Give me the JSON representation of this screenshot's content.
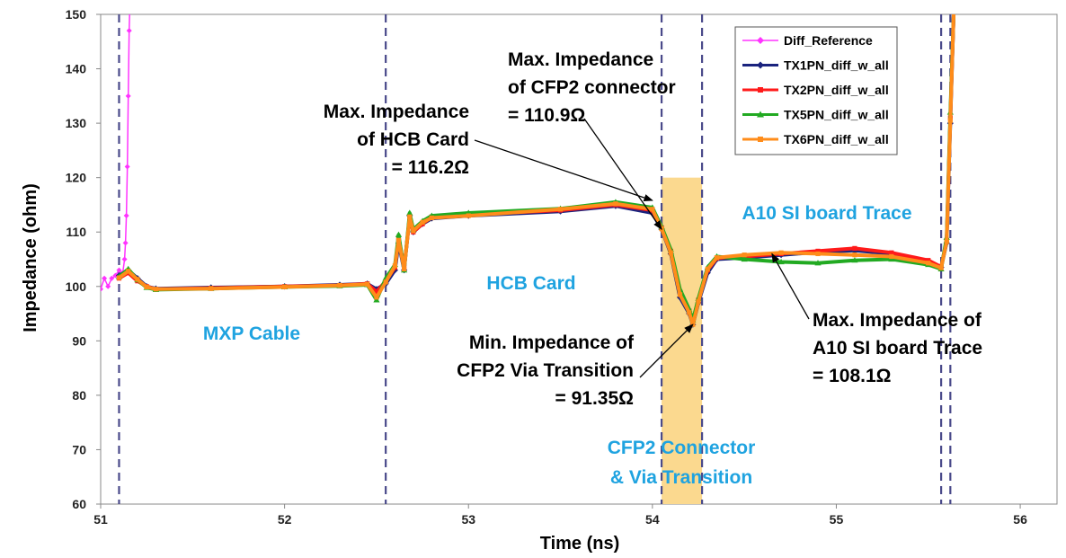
{
  "chart_data": {
    "type": "line",
    "xlabel": "Time (ns)",
    "ylabel": "Impedance (ohm)",
    "xlim": [
      51,
      56.2
    ],
    "ylim": [
      60,
      150
    ],
    "x_ticks": [
      51,
      52,
      53,
      54,
      55,
      56
    ],
    "y_ticks": [
      60,
      70,
      80,
      90,
      100,
      110,
      120,
      130,
      140,
      150
    ],
    "grid": false,
    "legend_position": "top-right",
    "vertical_markers": [
      51.1,
      52.55,
      54.05,
      54.27,
      55.57,
      55.62
    ],
    "highlight_band": {
      "x": [
        54.05,
        54.27
      ],
      "y": [
        60,
        120
      ],
      "color": "#fbd98f"
    },
    "series": [
      {
        "name": "Diff_Reference",
        "color": "#ff33ff",
        "marker": "diamond",
        "x": [
          51.0,
          51.02,
          51.04,
          51.06,
          51.08,
          51.1,
          51.12,
          51.13,
          51.135,
          51.14,
          51.145,
          51.15,
          51.155,
          51.16
        ],
        "y": [
          99.5,
          101.5,
          100.0,
          101.5,
          102.0,
          103.0,
          102.5,
          105.0,
          108.0,
          113.0,
          122.0,
          135.0,
          147.0,
          153.0
        ]
      },
      {
        "name": "TX1PN_diff_w_all",
        "color": "#1a237e",
        "marker": "diamond",
        "x": [
          51.1,
          51.15,
          51.2,
          51.25,
          51.3,
          51.6,
          52.0,
          52.3,
          52.45,
          52.5,
          52.55,
          52.6,
          52.62,
          52.65,
          52.68,
          52.7,
          52.75,
          52.8,
          53.0,
          53.5,
          53.8,
          54.0,
          54.05,
          54.1,
          54.15,
          54.2,
          54.22,
          54.25,
          54.3,
          54.35,
          54.5,
          54.7,
          54.9,
          55.1,
          55.3,
          55.5,
          55.57,
          55.6,
          55.62,
          55.64
        ],
        "y": [
          102.0,
          103.0,
          101.5,
          100.0,
          99.6,
          99.8,
          100.0,
          100.3,
          100.5,
          99.5,
          100.5,
          103.0,
          108.0,
          103.0,
          113.0,
          110.0,
          111.5,
          112.5,
          113.0,
          113.8,
          114.8,
          113.5,
          110.5,
          106.0,
          98.0,
          95.0,
          93.0,
          97.0,
          102.5,
          105.0,
          105.3,
          105.8,
          106.3,
          106.6,
          106.0,
          104.5,
          103.5,
          108.0,
          130.0,
          152.0
        ]
      },
      {
        "name": "TX2PN_diff_w_all",
        "color": "#ff1a1a",
        "marker": "square",
        "x": [
          51.1,
          51.15,
          51.2,
          51.25,
          51.3,
          51.6,
          52.0,
          52.3,
          52.45,
          52.5,
          52.55,
          52.6,
          52.62,
          52.65,
          52.68,
          52.7,
          52.75,
          52.8,
          53.0,
          53.5,
          53.8,
          54.0,
          54.05,
          54.1,
          54.15,
          54.2,
          54.22,
          54.25,
          54.3,
          54.35,
          54.5,
          54.7,
          54.9,
          55.1,
          55.3,
          55.5,
          55.57,
          55.6,
          55.62,
          55.64
        ],
        "y": [
          101.5,
          102.5,
          101.0,
          100.0,
          99.5,
          99.7,
          100.0,
          100.2,
          100.5,
          99.0,
          101.0,
          103.5,
          109.0,
          103.5,
          112.5,
          110.0,
          111.5,
          112.8,
          113.2,
          114.0,
          115.0,
          114.0,
          110.8,
          106.5,
          99.0,
          95.5,
          93.5,
          97.5,
          103.0,
          105.2,
          105.5,
          106.0,
          106.5,
          107.0,
          106.2,
          104.8,
          103.6,
          108.5,
          131.0,
          152.0
        ]
      },
      {
        "name": "TX5PN_diff_w_all",
        "color": "#22aa22",
        "marker": "triangle",
        "x": [
          51.1,
          51.15,
          51.2,
          51.25,
          51.3,
          51.6,
          52.0,
          52.3,
          52.45,
          52.5,
          52.55,
          52.6,
          52.62,
          52.65,
          52.68,
          52.7,
          52.75,
          52.8,
          53.0,
          53.5,
          53.8,
          54.0,
          54.05,
          54.1,
          54.15,
          54.2,
          54.22,
          54.25,
          54.3,
          54.35,
          54.5,
          54.7,
          54.9,
          55.1,
          55.3,
          55.5,
          55.57,
          55.6,
          55.62,
          55.64
        ],
        "y": [
          101.8,
          103.2,
          101.2,
          99.8,
          99.4,
          99.6,
          99.9,
          100.1,
          100.3,
          97.5,
          101.5,
          104.0,
          109.5,
          103.0,
          113.5,
          110.5,
          112.0,
          113.0,
          113.5,
          114.3,
          115.5,
          114.5,
          111.0,
          106.8,
          99.5,
          95.8,
          93.8,
          97.8,
          103.5,
          105.5,
          105.0,
          104.5,
          104.3,
          104.8,
          105.0,
          104.0,
          103.2,
          109.0,
          132.0,
          152.0
        ]
      },
      {
        "name": "TX6PN_diff_w_all",
        "color": "#ff8c1a",
        "marker": "square",
        "x": [
          51.1,
          51.15,
          51.2,
          51.25,
          51.3,
          51.6,
          52.0,
          52.3,
          52.45,
          52.5,
          52.55,
          52.6,
          52.62,
          52.65,
          52.68,
          52.7,
          52.75,
          52.8,
          53.0,
          53.5,
          53.8,
          54.0,
          54.05,
          54.1,
          54.15,
          54.2,
          54.22,
          54.25,
          54.3,
          54.35,
          54.5,
          54.7,
          54.9,
          55.1,
          55.3,
          55.5,
          55.57,
          55.6,
          55.62,
          55.64
        ],
        "y": [
          101.6,
          102.8,
          101.3,
          99.9,
          99.5,
          99.6,
          99.9,
          100.2,
          100.4,
          98.0,
          100.8,
          103.8,
          108.5,
          103.2,
          112.8,
          110.2,
          111.8,
          112.6,
          113.0,
          114.2,
          115.2,
          114.2,
          110.6,
          106.2,
          98.5,
          95.2,
          93.0,
          97.2,
          103.2,
          105.3,
          105.8,
          106.2,
          106.0,
          105.8,
          105.5,
          104.3,
          103.4,
          108.2,
          130.5,
          152.0
        ]
      }
    ],
    "annotations": [
      {
        "id": "hcb-max",
        "lines": [
          "Max. Impedance",
          "of HCB Card",
          "= 116.2Ω"
        ],
        "color": "black",
        "points_to": {
          "x": 54.0,
          "y": 115.8
        }
      },
      {
        "id": "cfp2-max",
        "lines": [
          "Max. Impedance",
          "of CFP2 connector",
          "= 110.9Ω"
        ],
        "color": "black",
        "points_to": {
          "x": 54.05,
          "y": 110.5
        }
      },
      {
        "id": "via-min",
        "lines": [
          "Min. Impedance of",
          "CFP2 Via Transition",
          "= 91.35Ω"
        ],
        "color": "black",
        "points_to": {
          "x": 54.22,
          "y": 93.0
        }
      },
      {
        "id": "a10-max",
        "lines": [
          "Max. Impedance of",
          "A10 SI board Trace",
          "= 108.1Ω"
        ],
        "color": "black",
        "points_to": {
          "x": 54.65,
          "y": 106.0
        }
      }
    ],
    "region_labels": [
      {
        "id": "mxp",
        "lines": [
          "MXP Cable"
        ]
      },
      {
        "id": "hcb",
        "lines": [
          "HCB Card"
        ]
      },
      {
        "id": "a10",
        "lines": [
          "A10 SI board Trace"
        ]
      },
      {
        "id": "cfp2",
        "lines": [
          "CFP2 Connector",
          "& Via Transition"
        ]
      }
    ]
  }
}
